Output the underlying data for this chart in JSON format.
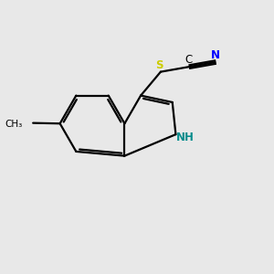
{
  "background_color": "#e8e8e8",
  "bond_color": "#000000",
  "N_color": "#0000FF",
  "S_color": "#CCCC00",
  "NH_color": "#008B8B",
  "figsize": [
    3.0,
    3.0
  ],
  "dpi": 100,
  "xlim": [
    0,
    10
  ],
  "ylim": [
    0,
    10
  ]
}
